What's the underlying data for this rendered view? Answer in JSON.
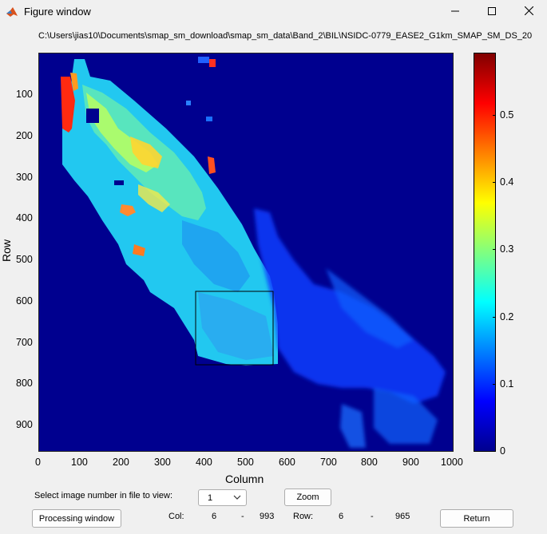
{
  "window": {
    "title": "Figure window"
  },
  "figure": {
    "path_title": "C:\\Users\\jias10\\Documents\\smap_sm_download\\smap_sm_data\\Band_2\\BIL\\NSIDC-0779_EASE2_G1km_SMAP_SM_DS_20",
    "xlabel": "Column",
    "ylabel": "Row",
    "x_ticks": [
      "0",
      "100",
      "200",
      "300",
      "400",
      "500",
      "600",
      "700",
      "800",
      "900",
      "1000"
    ],
    "y_ticks": [
      "100",
      "200",
      "300",
      "400",
      "500",
      "600",
      "700",
      "800",
      "900"
    ],
    "colorbar_ticks": [
      "0",
      "0.1",
      "0.2",
      "0.3",
      "0.4",
      "0.5"
    ],
    "colormap": "jet",
    "background_color": "#00008f",
    "selection_rectangle": {
      "col_range": [
        378,
        568
      ],
      "row_range": [
        580,
        760
      ]
    }
  },
  "chart_data": {
    "type": "heatmap",
    "title": "C:\\Users\\jias10\\Documents\\smap_sm_download\\smap_sm_data\\Band_2\\BIL\\NSIDC-0779_EASE2_G1km_SMAP_SM_DS_20",
    "xlabel": "Column",
    "ylabel": "Row",
    "xlim": [
      0,
      1000
    ],
    "ylim": [
      0,
      965
    ],
    "y_reversed": true,
    "colorbar_range": [
      0,
      0.59
    ],
    "colormap": "jet"
  },
  "controls": {
    "select_label": "Select image number in file to view:",
    "select_value": "1",
    "zoom_label": "Zoom",
    "processing_label": "Processing window",
    "return_label": "Return",
    "col_label": "Col:",
    "col_min": "6",
    "col_dash": "-",
    "col_max": "993",
    "row_label": "Row:",
    "row_min": "6",
    "row_dash": "-",
    "row_max": "965"
  }
}
